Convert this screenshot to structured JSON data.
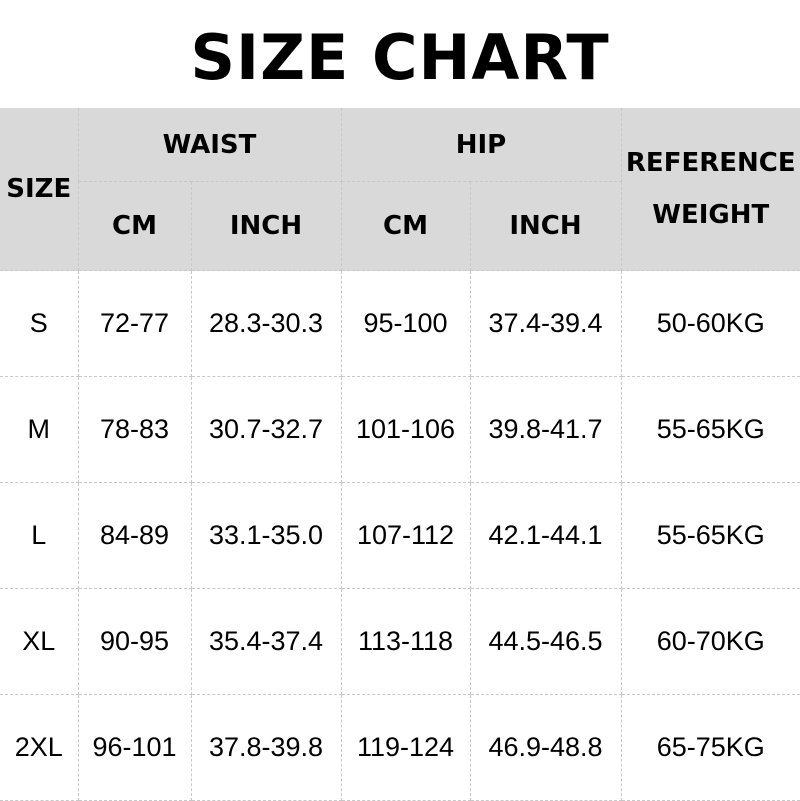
{
  "title": "SIZE CHART",
  "header": {
    "size": "SIZE",
    "waist": "WAIST",
    "hip": "HIP",
    "reference_weight_line1": "REFERENCE",
    "reference_weight_line2": "WEIGHT",
    "waist_cm": "CM",
    "waist_inch": "INCH",
    "hip_cm": "CM",
    "hip_inch": "INCH"
  },
  "rows": [
    {
      "size": "S",
      "waist_cm": "72-77",
      "waist_inch": "28.3-30.3",
      "hip_cm": "95-100",
      "hip_inch": "37.4-39.4",
      "weight": "50-60KG"
    },
    {
      "size": "M",
      "waist_cm": "78-83",
      "waist_inch": "30.7-32.7",
      "hip_cm": "101-106",
      "hip_inch": "39.8-41.7",
      "weight": "55-65KG"
    },
    {
      "size": "L",
      "waist_cm": "84-89",
      "waist_inch": "33.1-35.0",
      "hip_cm": "107-112",
      "hip_inch": "42.1-44.1",
      "weight": "55-65KG"
    },
    {
      "size": "XL",
      "waist_cm": "90-95",
      "waist_inch": "35.4-37.4",
      "hip_cm": "113-118",
      "hip_inch": "44.5-46.5",
      "weight": "60-70KG"
    },
    {
      "size": "2XL",
      "waist_cm": "96-101",
      "waist_inch": "37.8-39.8",
      "hip_cm": "119-124",
      "hip_inch": "46.9-48.8",
      "weight": "65-75KG"
    }
  ],
  "colors": {
    "header_bg": "#d9d9d9",
    "grid": "#c8c8c8"
  }
}
